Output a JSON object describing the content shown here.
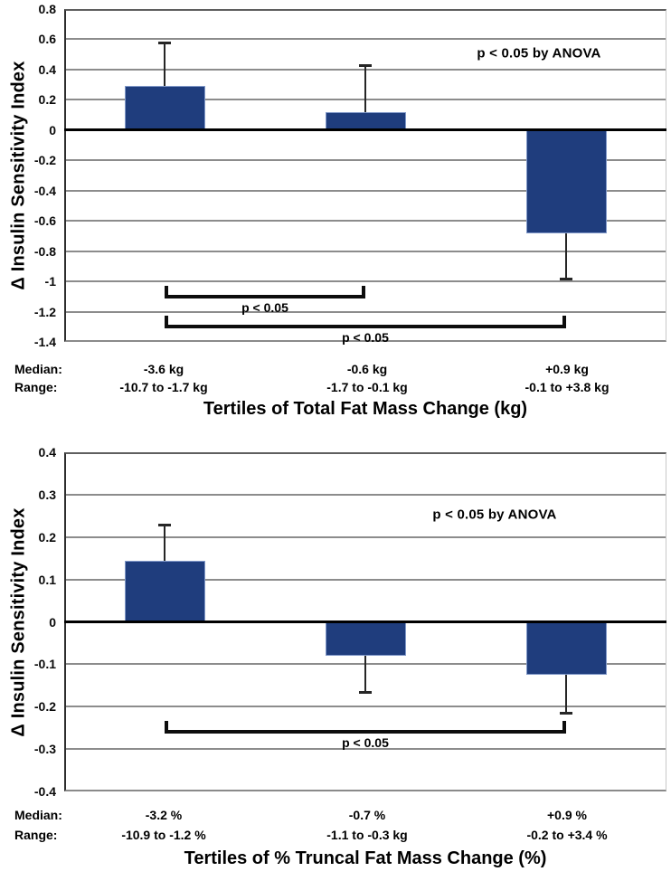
{
  "figure": {
    "background": "#ffffff",
    "bar_color": "#1f3d7d",
    "bar_border_color": "#8098c8",
    "gridline_color": "#8c8c8c",
    "zero_line_color": "#000000"
  },
  "chart_data": [
    {
      "type": "bar",
      "title": "",
      "ylabel": "Δ Insulin Sensitivity Index",
      "xlabel": "Tertiles of Total Fat Mass Change (kg)",
      "annotation": "p < 0.05 by ANOVA",
      "ylim": [
        -1.4,
        0.8
      ],
      "ytick_step": 0.2,
      "yticks": [
        "0.8",
        "0.6",
        "0.4",
        "0.2",
        "0",
        "-0.2",
        "-0.4",
        "-0.6",
        "-0.8",
        "-1",
        "-1.2",
        "-1.4"
      ],
      "grid": true,
      "legend": "none",
      "values": [
        0.29,
        0.12,
        -0.68
      ],
      "error_tips": [
        0.58,
        0.43,
        -0.98
      ],
      "brackets": [
        {
          "from": 0,
          "to": 1,
          "y": -1.1,
          "label": "p < 0.05"
        },
        {
          "from": 0,
          "to": 2,
          "y": -1.3,
          "label": "p < 0.05"
        }
      ],
      "median_row_label": "Median:",
      "range_row_label": "Range:",
      "medians": [
        "-3.6 kg",
        "-0.6 kg",
        "+0.9 kg"
      ],
      "ranges": [
        "-10.7 to -1.7 kg",
        "-1.7 to -0.1 kg",
        "-0.1 to +3.8 kg"
      ]
    },
    {
      "type": "bar",
      "title": "",
      "ylabel": "Δ Insulin Sensitivity Index",
      "xlabel": "Tertiles of % Truncal Fat Mass Change (%)",
      "annotation": "p < 0.05 by ANOVA",
      "ylim": [
        -0.4,
        0.4
      ],
      "ytick_step": 0.1,
      "yticks": [
        "0.4",
        "0.3",
        "0.2",
        "0.1",
        "0",
        "-0.1",
        "-0.2",
        "-0.3",
        "-0.4"
      ],
      "grid": true,
      "legend": "none",
      "values": [
        0.145,
        -0.08,
        -0.125
      ],
      "error_tips": [
        0.23,
        -0.165,
        -0.215
      ],
      "brackets": [
        {
          "from": 0,
          "to": 2,
          "y": -0.26,
          "label": "p < 0.05"
        }
      ],
      "median_row_label": "Median:",
      "range_row_label": "Range:",
      "medians": [
        "-3.2 %",
        "-0.7 %",
        "+0.9 %"
      ],
      "ranges": [
        "-10.9 to -1.2 %",
        "-1.1 to -0.3 kg",
        "-0.2 to +3.4 %"
      ]
    }
  ]
}
